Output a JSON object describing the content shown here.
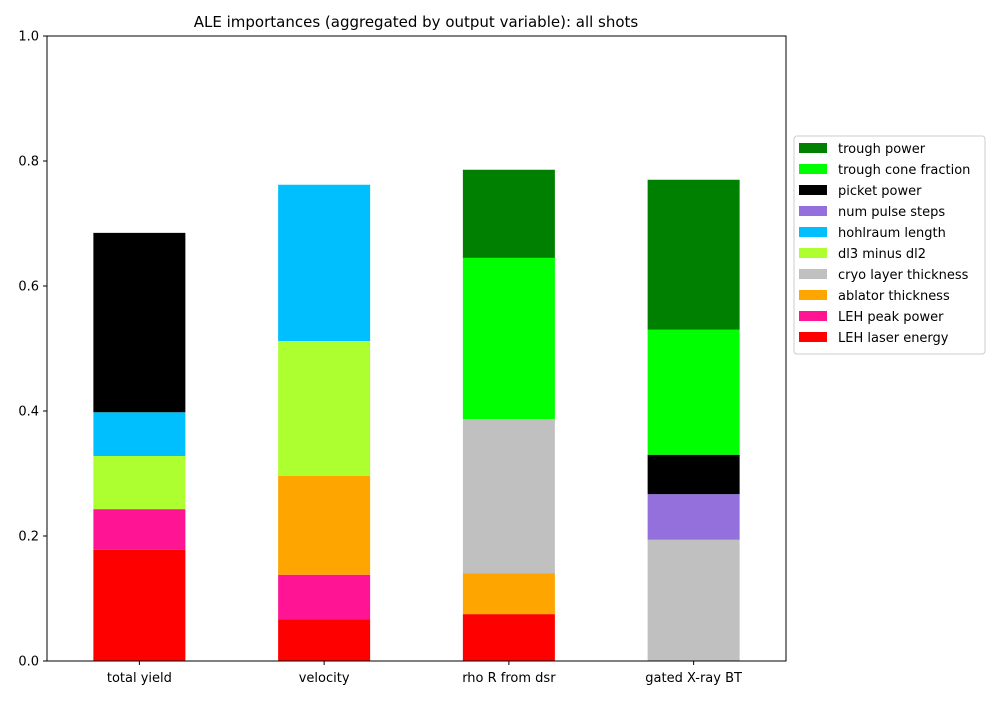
{
  "chart_data": {
    "type": "bar",
    "stacked": true,
    "title": "ALE importances (aggregated by output variable): all shots",
    "xlabel": "",
    "ylabel": "",
    "ylim": [
      0,
      1.0
    ],
    "yticks": [
      0.0,
      0.2,
      0.4,
      0.6,
      0.8,
      1.0
    ],
    "ytick_labels": [
      "0.0",
      "0.2",
      "0.4",
      "0.6",
      "0.8",
      "1.0"
    ],
    "grid": false,
    "legend_position": "right",
    "categories": [
      "total yield",
      "velocity",
      "rho R from dsr",
      "gated X-ray BT"
    ],
    "series": [
      {
        "name": "LEH laser energy",
        "color": "#ff0000",
        "values": [
          0.178,
          0.067,
          0.075,
          0.0
        ]
      },
      {
        "name": "LEH peak power",
        "color": "#ff1493",
        "values": [
          0.065,
          0.071,
          0.0,
          0.0
        ]
      },
      {
        "name": "ablator thickness",
        "color": "#ffa500",
        "values": [
          0.0,
          0.158,
          0.065,
          0.0
        ]
      },
      {
        "name": "cryo layer thickness",
        "color": "#c0c0c0",
        "values": [
          0.0,
          0.0,
          0.247,
          0.194
        ]
      },
      {
        "name": "dl3 minus dl2",
        "color": "#adff2f",
        "values": [
          0.085,
          0.216,
          0.0,
          0.0
        ]
      },
      {
        "name": "hohlraum length",
        "color": "#00bfff",
        "values": [
          0.07,
          0.25,
          0.0,
          0.0
        ]
      },
      {
        "name": "num pulse steps",
        "color": "#9370db",
        "values": [
          0.0,
          0.0,
          0.0,
          0.073
        ]
      },
      {
        "name": "picket power",
        "color": "#000000",
        "values": [
          0.287,
          0.0,
          0.0,
          0.063
        ]
      },
      {
        "name": "trough cone fraction",
        "color": "#00ff00",
        "values": [
          0.0,
          0.0,
          0.258,
          0.2
        ]
      },
      {
        "name": "trough power",
        "color": "#008000",
        "values": [
          0.0,
          0.0,
          0.141,
          0.24
        ]
      }
    ]
  }
}
